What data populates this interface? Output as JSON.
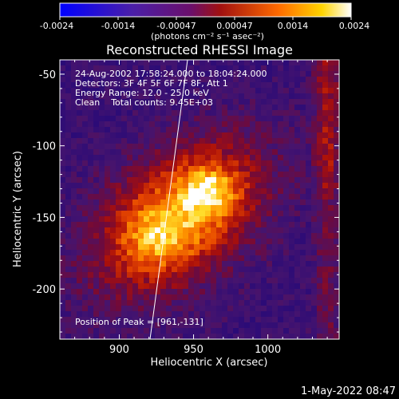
{
  "colorbar": {
    "ticks": [
      "-0.0024",
      "-0.0014",
      "-0.00047",
      "0.00047",
      "0.0014",
      "0.0024"
    ],
    "unit_label": "(photons cm⁻² s⁻¹ asec⁻²)"
  },
  "header": {
    "title": "Reconstructed RHESSI Image"
  },
  "info": {
    "line1": "24-Aug-2002 17:58:24.000 to 18:04:24.000",
    "line2": "Detectors: 3F 4F 5F 6F 7F 8F, Att 1",
    "line3": "Energy Range: 12.0 - 25.0 keV",
    "line4": "Clean    Total counts: 9.45E+03",
    "peak": "Position of Peak = [961,-131]"
  },
  "footer": {
    "timestamp": "1-May-2022 08:47"
  },
  "chart_data": {
    "type": "heatmap",
    "title": "Reconstructed RHESSI Image",
    "xlabel": "Heliocentric X (arcsec)",
    "ylabel": "Heliocentric Y (arcsec)",
    "xlim": [
      860,
      1048
    ],
    "ylim": [
      -235,
      -40
    ],
    "x_ticks": [
      "900",
      "950",
      "1000"
    ],
    "y_ticks": [
      "-50",
      "-100",
      "-150",
      "-200"
    ],
    "x_tick_values": [
      900,
      950,
      1000
    ],
    "y_tick_values": [
      -50,
      -100,
      -150,
      -200
    ],
    "colorbar_range": [
      -0.0024,
      0.0024
    ],
    "peak": [
      961,
      -131
    ],
    "colors": {
      "low": "#0000ff",
      "mid_low": "#4b0082",
      "mid": "#8b0000",
      "mid_high": "#ff6600",
      "high": "#ffffff"
    }
  }
}
